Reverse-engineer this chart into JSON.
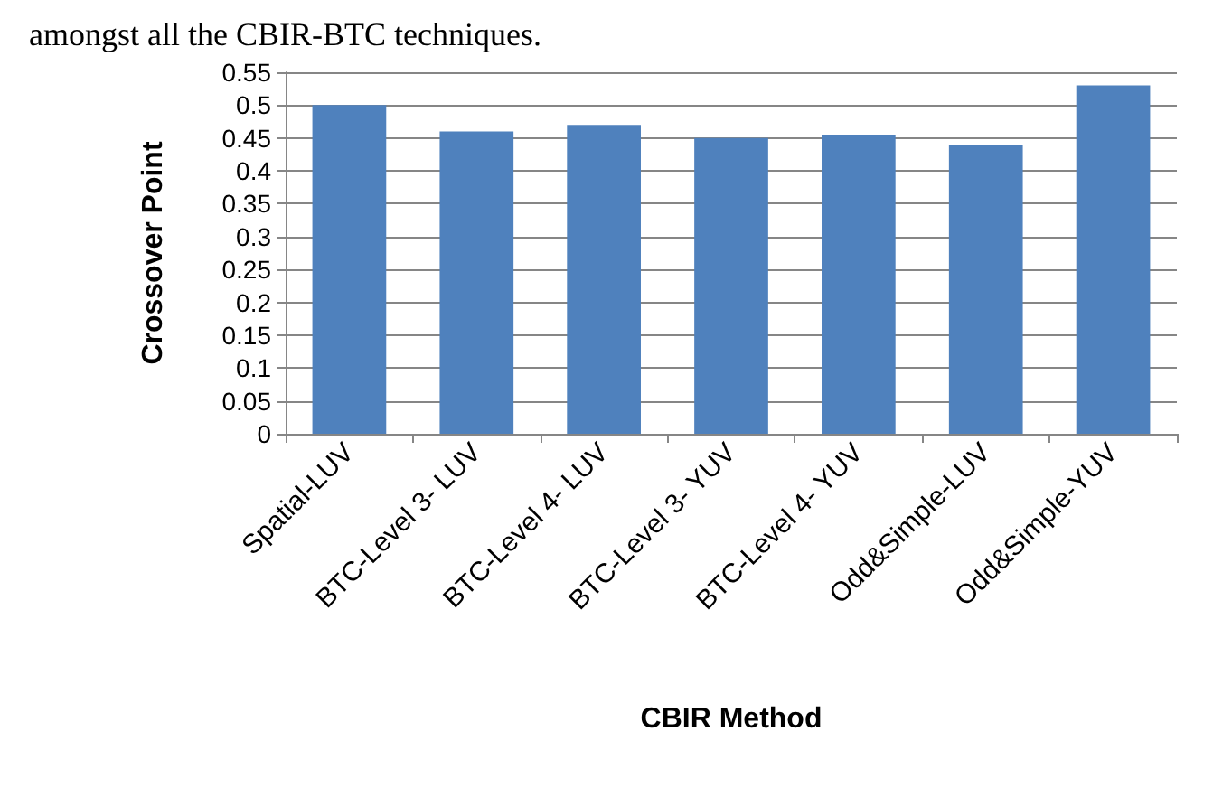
{
  "chart_data": {
    "type": "bar",
    "xlabel": "CBIR Method",
    "ylabel": "Crossover Point",
    "annotations": [
      "amongst all the CBIR-BTC techniques."
    ],
    "categories": [
      "Spatial-LUV",
      "BTC-Level 3- LUV",
      "BTC-Level 4- LUV",
      "BTC-Level 3- YUV",
      "BTC-Level 4- YUV",
      "Odd&Simple-LUV",
      "Odd&Simple-YUV"
    ],
    "values": [
      0.5,
      0.46,
      0.47,
      0.45,
      0.455,
      0.44,
      0.53
    ],
    "color": "#4f81bd",
    "ylim": [
      0,
      0.55
    ],
    "yticks": [
      0,
      0.05,
      0.1,
      0.15,
      0.2,
      0.25,
      0.3,
      0.35,
      0.4,
      0.45,
      0.5,
      0.55
    ],
    "grid": "y"
  }
}
